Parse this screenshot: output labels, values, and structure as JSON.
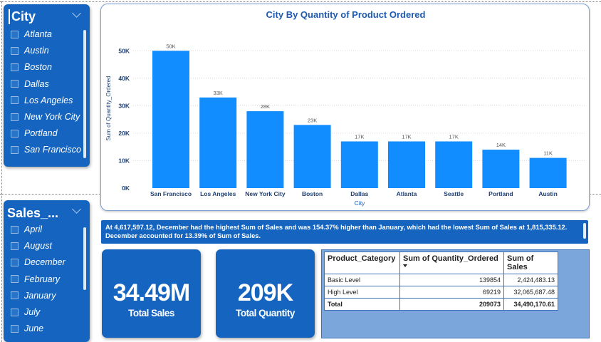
{
  "slicers": {
    "city": {
      "title": "City",
      "items": [
        "Atlanta",
        "Austin",
        "Boston",
        "Dallas",
        "Los Angeles",
        "New York City",
        "Portland",
        "San Francisco"
      ]
    },
    "sales": {
      "title": "Sales_...",
      "items": [
        "April",
        "August",
        "December",
        "February",
        "January",
        "July",
        "June"
      ]
    }
  },
  "chart": {
    "title": "City By Quantity of Product Ordered"
  },
  "chart_data": {
    "type": "bar",
    "title": "City By Quantity of Product Ordered",
    "xlabel": "City",
    "ylabel": "Sum of Quantity_Ordered",
    "categories": [
      "San Francisco",
      "Los Angeles",
      "New York City",
      "Boston",
      "Dallas",
      "Atlanta",
      "Seattle",
      "Portland",
      "Austin"
    ],
    "values": [
      50000,
      33000,
      28000,
      23000,
      17000,
      17000,
      17000,
      14000,
      11000
    ],
    "data_labels": [
      "50K",
      "33K",
      "28K",
      "23K",
      "17K",
      "17K",
      "17K",
      "14K",
      "11K"
    ],
    "yticks": [
      0,
      10000,
      20000,
      30000,
      40000,
      50000
    ],
    "ytick_labels": [
      "0K",
      "10K",
      "20K",
      "30K",
      "40K",
      "50K"
    ],
    "ylim": [
      0,
      55000
    ],
    "grid": true,
    "bar_color": "#118dff"
  },
  "narrative": {
    "text": "At 4,617,597.12, December had the highest Sum of Sales and was 154.37% higher than January, which had the lowest Sum of Sales at 1,815,335.12. December accounted for 13.39% of Sum of Sales."
  },
  "kpis": {
    "total_sales": {
      "value": "34.49M",
      "label": "Total Sales"
    },
    "total_quantity": {
      "value": "209K",
      "label": "Total Quantity"
    }
  },
  "table": {
    "headers": [
      "Product_Category",
      "Sum of Quantity_Ordered",
      "Sum of Sales"
    ],
    "rows": [
      [
        "Basic Level",
        "139854",
        "2,424,483.13"
      ],
      [
        "High Level",
        "69219",
        "32,065,687.48"
      ]
    ],
    "total": [
      "Total",
      "209073",
      "34,490,170.61"
    ]
  },
  "colors": {
    "panel_blue": "#1565c0",
    "title_blue": "#1e5bb0",
    "bar_blue": "#118dff",
    "table_bg": "#7aa6dc"
  }
}
